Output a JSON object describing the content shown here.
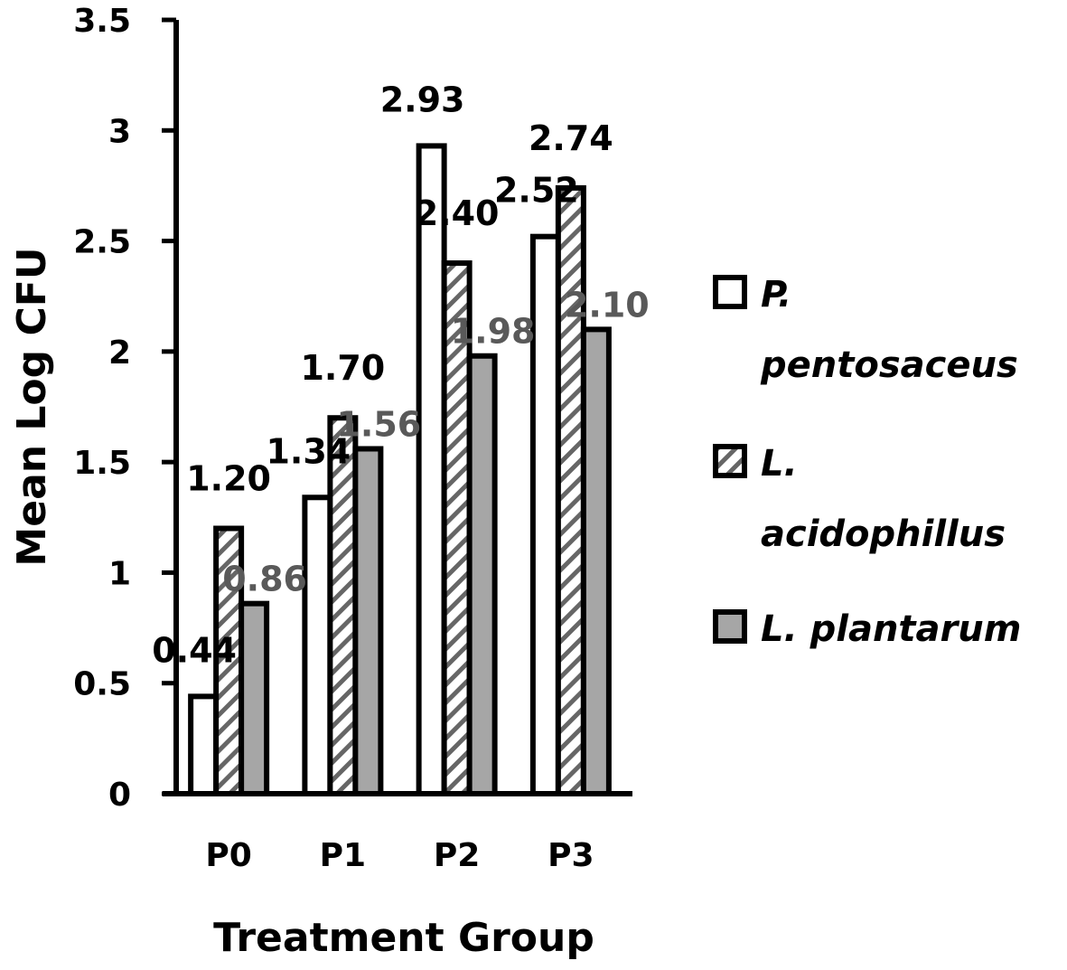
{
  "chart_data": {
    "type": "bar",
    "title": "",
    "xlabel": "Treatment Group",
    "ylabel": "Mean Log CFU",
    "ylim": [
      0,
      3.5
    ],
    "yticks": [
      "0",
      "0.5",
      "1",
      "1.5",
      "2",
      "2.5",
      "3",
      "3.5"
    ],
    "grid": false,
    "legend_position": "right",
    "categories": [
      "P0",
      "P1",
      "P2",
      "P3"
    ],
    "series": [
      {
        "name": "P. pentosaceus",
        "legend_lines": [
          "P.",
          "pentosaceus"
        ],
        "values": [
          0.44,
          1.34,
          2.93,
          2.52
        ],
        "labels": [
          "0.44",
          "1.34",
          "2.93",
          "2.52"
        ],
        "fill": "#ffffff",
        "pattern": "none",
        "label_color": "#000000"
      },
      {
        "name": "L. acidophillus",
        "legend_lines": [
          "L.",
          "acidophillus"
        ],
        "values": [
          1.2,
          1.7,
          2.4,
          2.74
        ],
        "labels": [
          "1.20",
          "1.70",
          "2.40",
          "2.74"
        ],
        "fill": "#ffffff",
        "pattern": "diagonal-hatch",
        "label_color": "#000000"
      },
      {
        "name": "L. plantarum",
        "legend_lines": [
          "L. plantarum"
        ],
        "values": [
          0.86,
          1.56,
          1.98,
          2.1
        ],
        "labels": [
          "0.86",
          "1.56",
          "1.98",
          "2.10"
        ],
        "fill": "#a6a6a6",
        "pattern": "none",
        "label_color": "#595959"
      }
    ]
  }
}
